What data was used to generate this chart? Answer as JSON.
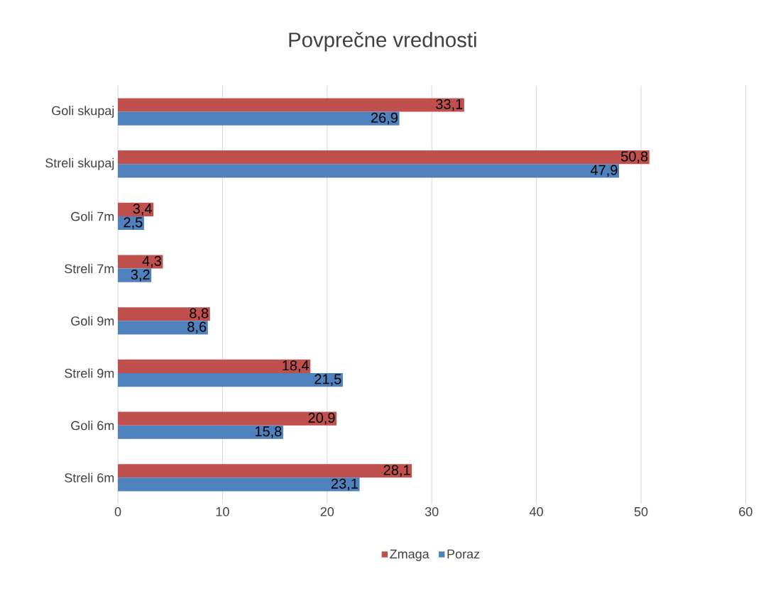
{
  "chart_data": {
    "type": "bar",
    "orientation": "horizontal",
    "title": "Povprečne vrednosti",
    "categories": [
      "Goli skupaj",
      "Streli skupaj",
      "Goli 7m",
      "Streli 7m",
      "Goli 9m",
      "Streli 9m",
      "Goli 6m",
      "Streli 6m"
    ],
    "series": [
      {
        "name": "Zmaga",
        "color": "#c0504d",
        "values": [
          33.1,
          50.8,
          3.4,
          4.3,
          8.8,
          18.4,
          20.9,
          28.1
        ],
        "value_labels": [
          "33,1",
          "50,8",
          "3,4",
          "4,3",
          "8,8",
          "18,4",
          "20,9",
          "28,1"
        ]
      },
      {
        "name": "Poraz",
        "color": "#4f81bd",
        "values": [
          26.9,
          47.9,
          2.5,
          3.2,
          8.6,
          21.5,
          15.8,
          23.1
        ],
        "value_labels": [
          "26,9",
          "47,9",
          "2,5",
          "3,2",
          "8,6",
          "21,5",
          "15,8",
          "23,1"
        ]
      }
    ],
    "xlim": [
      0,
      60
    ],
    "xticks": [
      0,
      10,
      20,
      30,
      40,
      50,
      60
    ],
    "grid": "x",
    "legend": "bottom"
  }
}
